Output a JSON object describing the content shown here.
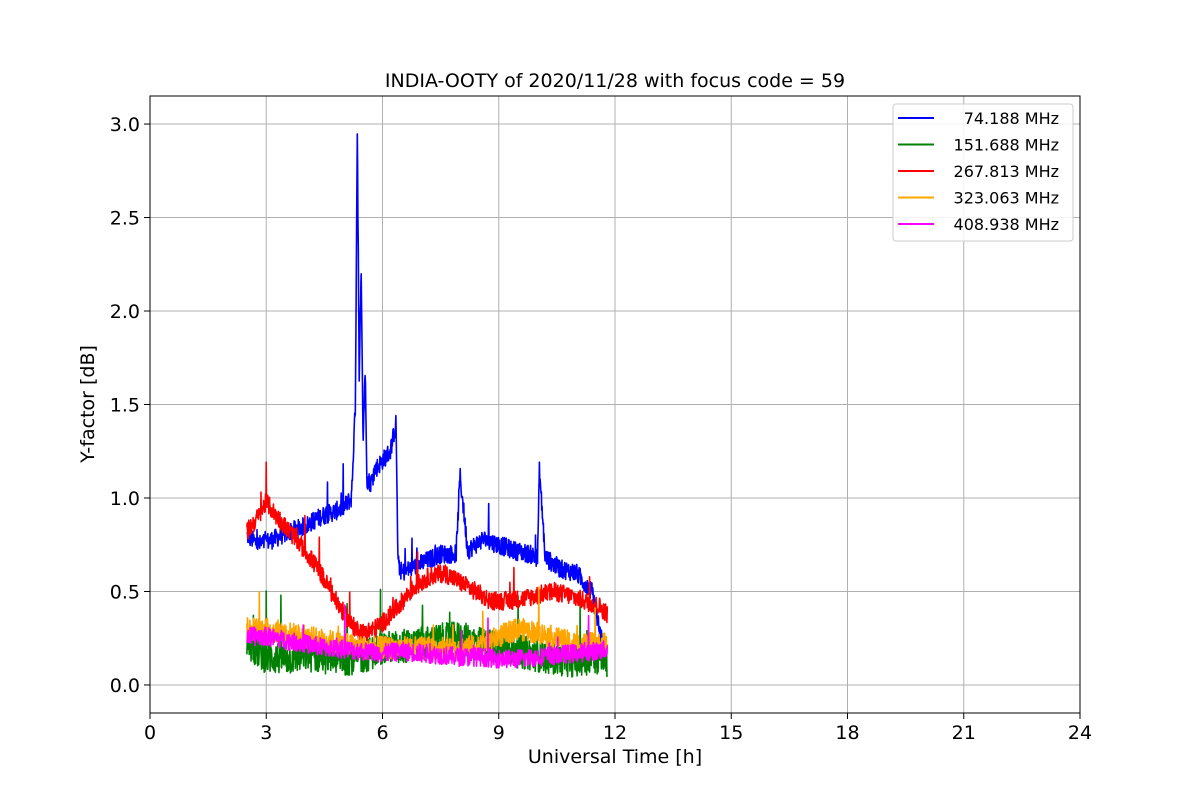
{
  "chart_data": {
    "type": "line",
    "title": "INDIA-OOTY of 2020/11/28 with focus code = 59",
    "xlabel": "Universal Time [h]",
    "ylabel": "Y-factor [dB]",
    "xlim": [
      0,
      24
    ],
    "ylim": [
      -0.15,
      3.15
    ],
    "xticks": [
      0,
      3,
      6,
      9,
      12,
      15,
      18,
      21,
      24
    ],
    "xtick_labels": [
      "0",
      "3",
      "6",
      "9",
      "12",
      "15",
      "18",
      "21",
      "24"
    ],
    "yticks": [
      0.0,
      0.5,
      1.0,
      1.5,
      2.0,
      2.5,
      3.0
    ],
    "ytick_labels": [
      "0.0",
      "0.5",
      "1.0",
      "1.5",
      "2.0",
      "2.5",
      "3.0"
    ],
    "grid": true,
    "legend_position": "top-right",
    "series": [
      {
        "name": "74.188 MHz",
        "color": "#0000ff",
        "noise": 0.05,
        "x": [
          2.5,
          2.8,
          3.2,
          3.6,
          4.0,
          4.4,
          4.8,
          5.0,
          5.2,
          5.3,
          5.35,
          5.4,
          5.45,
          5.5,
          5.55,
          5.6,
          5.7,
          5.8,
          6.0,
          6.2,
          6.35,
          6.4,
          6.5,
          7.0,
          7.5,
          7.9,
          8.0,
          8.2,
          8.6,
          9.0,
          9.4,
          9.8,
          10.0,
          10.05,
          10.2,
          10.6,
          11.0,
          11.4,
          11.8
        ],
        "y": [
          0.8,
          0.75,
          0.78,
          0.82,
          0.85,
          0.9,
          0.93,
          0.95,
          1.0,
          1.5,
          3.0,
          1.6,
          2.25,
          1.3,
          1.7,
          1.1,
          1.08,
          1.15,
          1.2,
          1.25,
          1.4,
          0.65,
          0.6,
          0.65,
          0.7,
          0.7,
          1.12,
          0.72,
          0.78,
          0.75,
          0.72,
          0.7,
          0.68,
          1.15,
          0.68,
          0.62,
          0.6,
          0.5,
          0.1
        ]
      },
      {
        "name": "151.688 MHz",
        "color": "#008000",
        "noise": 0.09,
        "x": [
          2.5,
          3.0,
          3.5,
          4.0,
          4.5,
          5.0,
          5.5,
          6.0,
          6.5,
          7.0,
          7.5,
          8.0,
          8.5,
          9.0,
          9.5,
          10.0,
          10.5,
          11.0,
          11.5,
          11.8
        ],
        "y": [
          0.22,
          0.15,
          0.14,
          0.16,
          0.15,
          0.14,
          0.15,
          0.2,
          0.2,
          0.22,
          0.24,
          0.25,
          0.22,
          0.2,
          0.18,
          0.16,
          0.14,
          0.13,
          0.15,
          0.12
        ]
      },
      {
        "name": "267.813 MHz",
        "color": "#ff0000",
        "noise": 0.05,
        "x": [
          2.5,
          2.8,
          3.0,
          3.2,
          3.6,
          4.0,
          4.4,
          4.8,
          5.2,
          5.5,
          5.8,
          6.1,
          6.4,
          6.8,
          7.2,
          7.6,
          8.0,
          8.4,
          8.8,
          9.2,
          9.6,
          10.0,
          10.4,
          10.8,
          11.2,
          11.6,
          11.8
        ],
        "y": [
          0.82,
          0.9,
          0.98,
          0.92,
          0.82,
          0.72,
          0.6,
          0.45,
          0.32,
          0.28,
          0.3,
          0.35,
          0.42,
          0.52,
          0.58,
          0.6,
          0.55,
          0.5,
          0.45,
          0.45,
          0.46,
          0.48,
          0.5,
          0.48,
          0.45,
          0.42,
          0.38
        ]
      },
      {
        "name": "323.063 MHz",
        "color": "#ffa500",
        "noise": 0.06,
        "x": [
          2.5,
          3.0,
          3.5,
          4.0,
          4.5,
          5.0,
          5.5,
          6.0,
          6.5,
          7.0,
          7.5,
          8.0,
          8.5,
          9.0,
          9.5,
          10.0,
          10.5,
          11.0,
          11.5,
          11.8
        ],
        "y": [
          0.3,
          0.3,
          0.28,
          0.26,
          0.24,
          0.22,
          0.2,
          0.2,
          0.2,
          0.2,
          0.2,
          0.2,
          0.21,
          0.26,
          0.3,
          0.28,
          0.25,
          0.22,
          0.22,
          0.22
        ]
      },
      {
        "name": "408.938 MHz",
        "color": "#ff00ff",
        "noise": 0.05,
        "x": [
          2.5,
          3.0,
          3.5,
          4.0,
          4.5,
          5.0,
          5.5,
          6.0,
          6.5,
          7.0,
          7.5,
          8.0,
          8.5,
          9.0,
          9.5,
          10.0,
          10.5,
          11.0,
          11.5,
          11.8
        ],
        "y": [
          0.26,
          0.26,
          0.24,
          0.22,
          0.2,
          0.19,
          0.18,
          0.17,
          0.18,
          0.17,
          0.16,
          0.15,
          0.15,
          0.14,
          0.14,
          0.15,
          0.16,
          0.17,
          0.18,
          0.19
        ]
      }
    ]
  }
}
